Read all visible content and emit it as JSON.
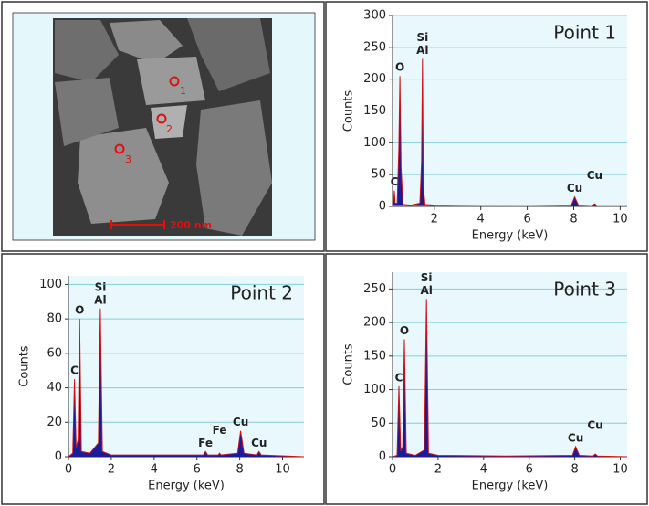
{
  "image": {
    "point_labels": [
      "1",
      "2",
      "3"
    ],
    "scale_bar": "200 nm"
  },
  "chart_data": [
    {
      "type": "spectrum",
      "title": "Point 1",
      "x_label": "Energy (keV)",
      "y_label": "Counts",
      "x": [
        0.2,
        0.25,
        0.28,
        0.31,
        0.4,
        0.47,
        0.52,
        0.57,
        0.65,
        1.0,
        1.38,
        1.45,
        1.49,
        1.53,
        1.6,
        2.0,
        4,
        6,
        7.9,
        8.04,
        8.2,
        8.8,
        8.9,
        9.0,
        10.3
      ],
      "series": [
        {
          "name": "Counts",
          "color": "#1a1a9c",
          "line_color": "#d01010",
          "values": [
            2,
            10,
            25,
            5,
            5,
            90,
            205,
            60,
            3,
            2,
            5,
            70,
            232,
            30,
            3,
            2,
            1,
            1,
            2,
            15,
            2,
            1,
            4,
            1,
            1
          ]
        }
      ],
      "annotations": [
        {
          "label": "C",
          "x": 0.28
        },
        {
          "label": "O",
          "x": 0.52
        },
        {
          "label": "Al",
          "x": 1.49
        },
        {
          "label": "Si",
          "x": 1.49
        },
        {
          "label": "Cu",
          "x": 8.04
        },
        {
          "label": "Cu",
          "x": 8.9
        }
      ],
      "xlim": [
        0.2,
        10.3
      ],
      "xticks": [
        2,
        4,
        6,
        8,
        10
      ],
      "ylim": [
        0,
        300
      ],
      "yticks": [
        0,
        50,
        100,
        150,
        200,
        250,
        300
      ],
      "grid": true
    },
    {
      "type": "spectrum",
      "title": "Point 2",
      "x_label": "Energy (keV)",
      "y_label": "Counts",
      "x": [
        0,
        0.2,
        0.28,
        0.36,
        0.45,
        0.52,
        0.6,
        1.0,
        1.4,
        1.49,
        1.58,
        2.0,
        5,
        6.3,
        6.4,
        6.5,
        7.0,
        7.06,
        7.12,
        7.9,
        8.04,
        8.2,
        8.8,
        8.9,
        9.0,
        11
      ],
      "series": [
        {
          "name": "Counts",
          "color": "#1a1a9c",
          "line_color": "#d01010",
          "values": [
            0,
            2,
            45,
            5,
            10,
            80,
            3,
            2,
            8,
            86,
            3,
            1,
            1,
            1,
            3,
            1,
            1,
            2,
            1,
            2,
            15,
            2,
            1,
            3,
            1,
            0
          ]
        }
      ],
      "annotations": [
        {
          "label": "C",
          "x": 0.28
        },
        {
          "label": "O",
          "x": 0.52
        },
        {
          "label": "Al",
          "x": 1.49
        },
        {
          "label": "Si",
          "x": 1.49
        },
        {
          "label": "Fe",
          "x": 6.4
        },
        {
          "label": "Fe",
          "x": 7.06
        },
        {
          "label": "Cu",
          "x": 8.04
        },
        {
          "label": "Cu",
          "x": 8.9
        }
      ],
      "xlim": [
        0,
        11
      ],
      "xticks": [
        0,
        2,
        4,
        6,
        8,
        10
      ],
      "ylim": [
        0,
        105
      ],
      "yticks": [
        0,
        20,
        40,
        60,
        80,
        100
      ],
      "grid": true
    },
    {
      "type": "spectrum",
      "title": "Point 3",
      "x_label": "Energy (keV)",
      "y_label": "Counts",
      "x": [
        0,
        0.2,
        0.28,
        0.36,
        0.45,
        0.52,
        0.6,
        1.0,
        1.4,
        1.49,
        1.58,
        2.0,
        5,
        7.9,
        8.04,
        8.2,
        8.8,
        8.9,
        9.0,
        10.3
      ],
      "series": [
        {
          "name": "Counts",
          "color": "#1a1a9c",
          "line_color": "#d01010",
          "values": [
            0,
            2,
            105,
            8,
            15,
            175,
            5,
            2,
            10,
            235,
            5,
            2,
            1,
            2,
            15,
            2,
            1,
            4,
            1,
            0
          ]
        }
      ],
      "annotations": [
        {
          "label": "C",
          "x": 0.28
        },
        {
          "label": "O",
          "x": 0.52
        },
        {
          "label": "Al",
          "x": 1.49
        },
        {
          "label": "Si",
          "x": 1.49
        },
        {
          "label": "Cu",
          "x": 8.04
        },
        {
          "label": "Cu",
          "x": 8.9
        }
      ],
      "xlim": [
        0,
        10.3
      ],
      "xticks": [
        0,
        2,
        4,
        6,
        8,
        10
      ],
      "ylim": [
        0,
        275
      ],
      "yticks": [
        0,
        50,
        100,
        150,
        200,
        250
      ],
      "grid": true
    }
  ]
}
